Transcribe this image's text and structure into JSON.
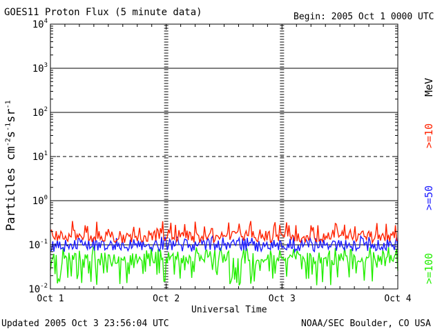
{
  "header": {
    "title": "GOES11 Proton Flux (5 minute data)",
    "begin": "Begin: 2005 Oct 1 0000 UTC"
  },
  "footer": {
    "updated": "Updated 2005 Oct  3 23:56:04 UTC",
    "source": "NOAA/SEC Boulder, CO USA"
  },
  "chart_data": {
    "type": "line",
    "title": "GOES11 Proton Flux (5 minute data)",
    "xlabel": "Universal Time",
    "ylabel": "Particles cm-2s-1sr-1",
    "yscale": "log",
    "ylim": [
      0.01,
      10000
    ],
    "xlim": [
      0,
      3
    ],
    "x_ticks": [
      {
        "value": 0,
        "label": "Oct 1"
      },
      {
        "value": 1,
        "label": "Oct 2"
      },
      {
        "value": 2,
        "label": "Oct 3"
      },
      {
        "value": 3,
        "label": "Oct 4"
      }
    ],
    "y_ticks": [
      {
        "value": 0.01,
        "base": "10",
        "exp": "-2"
      },
      {
        "value": 0.1,
        "base": "10",
        "exp": "-1"
      },
      {
        "value": 1,
        "base": "10",
        "exp": "0"
      },
      {
        "value": 10,
        "base": "10",
        "exp": "1"
      },
      {
        "value": 100,
        "base": "10",
        "exp": "2"
      },
      {
        "value": 1000,
        "base": "10",
        "exp": "3"
      },
      {
        "value": 10000,
        "base": "10",
        "exp": "4"
      }
    ],
    "threshold_lines": [
      {
        "value": 10,
        "style": "dashed"
      },
      {
        "value": 1,
        "style": "solid"
      },
      {
        "value": 100,
        "style": "solid"
      },
      {
        "value": 1000,
        "style": "solid"
      },
      {
        "value": 0.1,
        "style": "solid"
      }
    ],
    "series": [
      {
        "name": ">=10",
        "color": "#ff2200",
        "baseline": 0.16,
        "spread_low": 0.11,
        "spread_high": 0.35
      },
      {
        "name": ">=50",
        "color": "#1a1aff",
        "baseline": 0.1,
        "spread_low": 0.07,
        "spread_high": 0.16
      },
      {
        "name": ">=100",
        "color": "#22ee00",
        "baseline": 0.05,
        "spread_low": 0.012,
        "spread_high": 0.09
      }
    ],
    "legend_unit": "MeV",
    "legend_position": "right"
  }
}
